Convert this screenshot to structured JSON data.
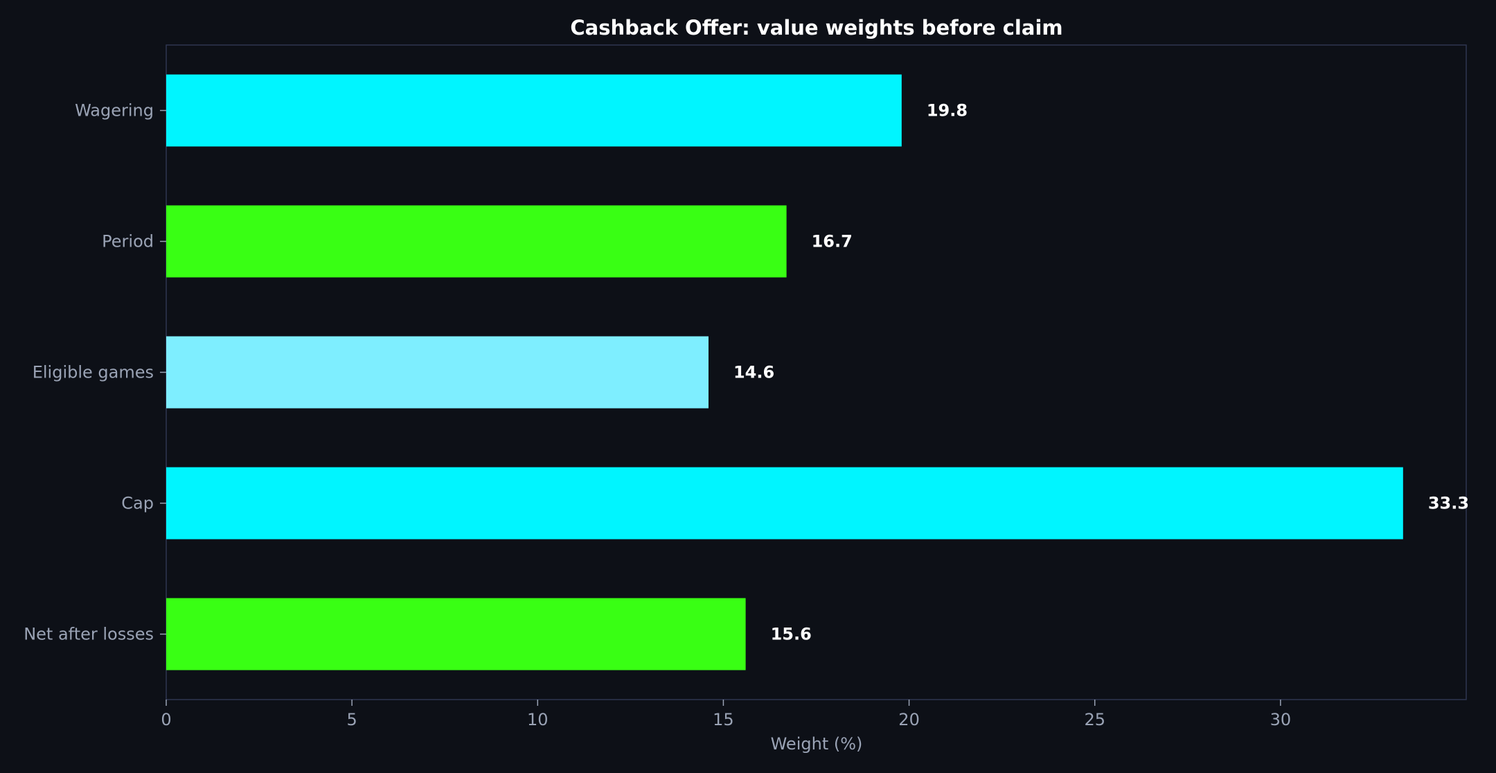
{
  "chart_data": {
    "type": "bar",
    "orientation": "horizontal",
    "title": "Cashback Offer: value weights before claim",
    "xlabel": "Weight (%)",
    "ylabel": "",
    "categories": [
      "Wagering",
      "Period",
      "Eligible games",
      "Cap",
      "Net after losses"
    ],
    "values": [
      19.8,
      16.7,
      14.6,
      33.3,
      15.6
    ],
    "data_labels": [
      "19.8",
      "16.7",
      "14.6",
      "33.3",
      "15.6"
    ],
    "bar_colors": [
      "#00f5ff",
      "#39ff14",
      "#7eeeff",
      "#00f5ff",
      "#39ff14"
    ],
    "xlim": [
      0,
      35
    ],
    "xticks": [
      0,
      5,
      10,
      15,
      20,
      25,
      30
    ],
    "xtick_labels": [
      "0",
      "5",
      "10",
      "15",
      "20",
      "25",
      "30"
    ],
    "grid": false,
    "legend": "none"
  },
  "colors": {
    "background": "#0d1017",
    "frame": "#2e3650",
    "tick_text": "#9aa3b5",
    "title_text": "#ffffff"
  }
}
